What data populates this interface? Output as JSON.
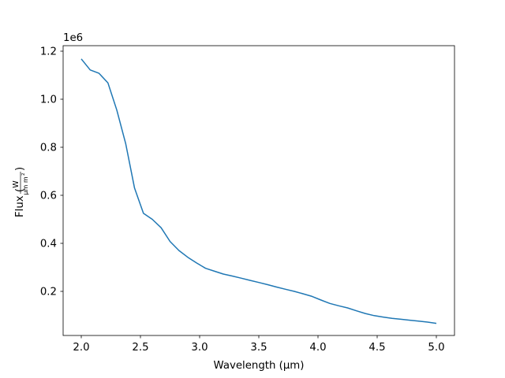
{
  "chart_data": {
    "type": "line",
    "title": "",
    "xlabel": "Wavelength (µm)",
    "ylabel": "Flux (W / (µm m²))",
    "ylabel_parts": {
      "prefix": "Flux (",
      "numerator": "W",
      "denominator": "µm m",
      "superscript": "2",
      "suffix": ")"
    },
    "y_offset_text": "1e6",
    "xlim": [
      1.85,
      5.15
    ],
    "ylim": [
      0.015,
      1.22
    ],
    "grid": false,
    "legend": null,
    "xticks": [
      2.0,
      2.5,
      3.0,
      3.5,
      4.0,
      4.5,
      5.0
    ],
    "xtick_labels": [
      "2.0",
      "2.5",
      "3.0",
      "3.5",
      "4.0",
      "4.5",
      "5.0"
    ],
    "yticks": [
      0.2,
      0.4,
      0.6,
      0.8,
      1.0,
      1.2
    ],
    "ytick_labels": [
      "0.2",
      "0.4",
      "0.6",
      "0.8",
      "1.0",
      "1.2"
    ],
    "series": [
      {
        "name": "Flux",
        "color": "#1f77b4",
        "x": [
          2.0,
          2.075,
          2.15,
          2.225,
          2.3,
          2.375,
          2.45,
          2.525,
          2.6,
          2.675,
          2.75,
          2.825,
          2.9,
          2.975,
          3.05,
          3.125,
          3.2,
          3.275,
          3.35,
          3.425,
          3.5,
          3.575,
          3.65,
          3.725,
          3.8,
          3.875,
          3.95,
          4.025,
          4.1,
          4.175,
          4.25,
          4.325,
          4.4,
          4.475,
          4.55,
          4.625,
          4.7,
          4.775,
          4.85,
          4.925,
          5.0
        ],
        "y": [
          1.168,
          1.122,
          1.108,
          1.068,
          0.955,
          0.815,
          0.63,
          0.525,
          0.5,
          0.465,
          0.408,
          0.37,
          0.342,
          0.318,
          0.296,
          0.284,
          0.272,
          0.264,
          0.255,
          0.246,
          0.237,
          0.228,
          0.218,
          0.209,
          0.2,
          0.19,
          0.179,
          0.164,
          0.15,
          0.14,
          0.131,
          0.119,
          0.108,
          0.099,
          0.093,
          0.088,
          0.084,
          0.08,
          0.076,
          0.072,
          0.067
        ]
      }
    ]
  }
}
